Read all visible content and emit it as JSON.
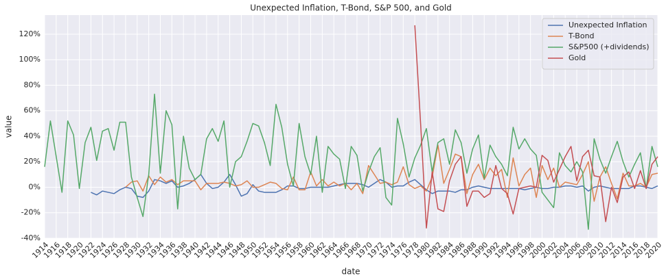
{
  "chart_data": {
    "type": "line",
    "title": "Unexpected Inflation, T-Bond, S&P 500, and Gold",
    "x_label": "date",
    "y_label": "value",
    "x": [
      1914,
      1915,
      1916,
      1917,
      1918,
      1919,
      1920,
      1921,
      1922,
      1923,
      1924,
      1925,
      1926,
      1927,
      1928,
      1929,
      1930,
      1931,
      1932,
      1933,
      1934,
      1935,
      1936,
      1937,
      1938,
      1939,
      1940,
      1941,
      1942,
      1943,
      1944,
      1945,
      1946,
      1947,
      1948,
      1949,
      1950,
      1951,
      1952,
      1953,
      1954,
      1955,
      1956,
      1957,
      1958,
      1959,
      1960,
      1961,
      1962,
      1963,
      1964,
      1965,
      1966,
      1967,
      1968,
      1969,
      1970,
      1971,
      1972,
      1973,
      1974,
      1975,
      1976,
      1977,
      1978,
      1979,
      1980,
      1981,
      1982,
      1983,
      1984,
      1985,
      1986,
      1987,
      1988,
      1989,
      1990,
      1991,
      1992,
      1993,
      1994,
      1995,
      1996,
      1997,
      1998,
      1999,
      2000,
      2001,
      2002,
      2003,
      2004,
      2005,
      2006,
      2007,
      2008,
      2009,
      2010,
      2011,
      2012,
      2013,
      2014,
      2015,
      2016,
      2017,
      2018,
      2019,
      2020
    ],
    "series": [
      {
        "name": "Unexpected Inflation",
        "color": "#4c72b0",
        "values": [
          null,
          null,
          null,
          null,
          null,
          null,
          null,
          null,
          -4,
          -6,
          -3,
          -4,
          -5,
          -2,
          0,
          -1,
          -7,
          -8,
          -3,
          6,
          5,
          3,
          5,
          0,
          1,
          3,
          6,
          10,
          3,
          -1,
          0,
          4,
          10,
          2,
          -7,
          -5,
          2,
          -3,
          -4,
          -4,
          -4,
          -2,
          1,
          1,
          -1,
          -1,
          0,
          0,
          0,
          0,
          1,
          2,
          3,
          3,
          3,
          2,
          0,
          3,
          6,
          4,
          0,
          1,
          1,
          4,
          6,
          2,
          -2,
          -5,
          -3,
          -3,
          -3,
          -4,
          -2,
          -2,
          0,
          1,
          0,
          -1,
          -1,
          -1,
          -1,
          -1,
          -1,
          -2,
          -1,
          0,
          -1,
          -1,
          0,
          0,
          1,
          1,
          0,
          1,
          -3,
          0,
          1,
          0,
          -1,
          -1,
          -1,
          -1,
          1,
          1,
          0,
          -1,
          1
        ]
      },
      {
        "name": "T-Bond",
        "color": "#dd8452",
        "values": [
          null,
          null,
          null,
          null,
          null,
          null,
          null,
          null,
          null,
          null,
          null,
          null,
          null,
          null,
          0,
          4,
          5,
          -3,
          9,
          2,
          8,
          4,
          6,
          2,
          5,
          5,
          5,
          -2,
          3,
          3,
          3,
          4,
          3,
          1,
          2,
          5,
          0,
          0,
          2,
          4,
          3,
          -1,
          -2,
          8,
          -2,
          -2,
          12,
          1,
          6,
          1,
          4,
          1,
          3,
          -2,
          3,
          -5,
          17,
          10,
          3,
          4,
          2,
          4,
          16,
          2,
          -1,
          1,
          -3,
          8,
          33,
          3,
          14,
          26,
          24,
          -5,
          10,
          18,
          6,
          15,
          9,
          14,
          -8,
          23,
          1,
          10,
          15,
          -8,
          17,
          6,
          15,
          0,
          4,
          3,
          2,
          10,
          20,
          -11,
          8,
          16,
          3,
          -9,
          11,
          1,
          1,
          3,
          0,
          10,
          11
        ]
      },
      {
        "name": "S&P500 (+dividends)",
        "color": "#55a868",
        "values": [
          16,
          52,
          24,
          -4,
          52,
          41,
          -1,
          35,
          47,
          21,
          44,
          46,
          29,
          51,
          51,
          8,
          -8,
          -23,
          10,
          73,
          11,
          60,
          49,
          -17,
          40,
          15,
          6,
          10,
          38,
          46,
          36,
          52,
          0,
          20,
          24,
          36,
          50,
          48,
          35,
          17,
          65,
          47,
          18,
          1,
          50,
          24,
          10,
          40,
          -4,
          32,
          26,
          22,
          -1,
          32,
          25,
          -3,
          12,
          24,
          31,
          -8,
          -14,
          54,
          34,
          8,
          23,
          33,
          46,
          12,
          35,
          38,
          18,
          45,
          35,
          11,
          30,
          41,
          7,
          33,
          24,
          18,
          9,
          47,
          30,
          38,
          30,
          25,
          -4,
          -10,
          -16,
          27,
          17,
          12,
          20,
          12,
          -33,
          38,
          22,
          11,
          24,
          36,
          20,
          8,
          18,
          27,
          -1,
          32,
          16
        ]
      },
      {
        "name": "Gold",
        "color": "#c44e52",
        "values": [
          null,
          null,
          null,
          null,
          null,
          null,
          null,
          null,
          null,
          null,
          null,
          null,
          null,
          null,
          null,
          null,
          null,
          null,
          null,
          null,
          null,
          null,
          null,
          null,
          null,
          null,
          null,
          null,
          null,
          null,
          null,
          null,
          null,
          null,
          null,
          null,
          null,
          null,
          null,
          null,
          null,
          null,
          null,
          null,
          null,
          null,
          null,
          null,
          null,
          null,
          null,
          null,
          null,
          null,
          null,
          null,
          null,
          null,
          null,
          null,
          null,
          null,
          null,
          null,
          127,
          50,
          -32,
          12,
          -17,
          -19,
          5,
          18,
          24,
          -15,
          -3,
          -3,
          -8,
          -5,
          17,
          -1,
          -5,
          -21,
          -1,
          0,
          1,
          0,
          25,
          21,
          4,
          14,
          24,
          32,
          5,
          24,
          29,
          9,
          8,
          -27,
          0,
          -12,
          8,
          12,
          -1,
          13,
          -1,
          18,
          24
        ]
      }
    ],
    "xlim": [
      1914,
      2020
    ],
    "xticks": [
      1914,
      1916,
      1918,
      1920,
      1922,
      1924,
      1926,
      1928,
      1930,
      1932,
      1934,
      1936,
      1938,
      1940,
      1942,
      1944,
      1946,
      1948,
      1950,
      1952,
      1954,
      1956,
      1958,
      1960,
      1962,
      1964,
      1966,
      1968,
      1970,
      1972,
      1974,
      1976,
      1978,
      1980,
      1982,
      1984,
      1986,
      1988,
      1990,
      1992,
      1994,
      1996,
      1998,
      2000,
      2002,
      2004,
      2006,
      2008,
      2010,
      2012,
      2014,
      2016,
      2018,
      2020
    ],
    "ylim": [
      -40,
      135
    ],
    "yticks": [
      {
        "value": -40,
        "label": "-40%"
      },
      {
        "value": -20,
        "label": "-20%"
      },
      {
        "value": 0,
        "label": "0%"
      },
      {
        "value": 20,
        "label": "20%"
      },
      {
        "value": 40,
        "label": "40%"
      },
      {
        "value": 60,
        "label": "60%"
      },
      {
        "value": 80,
        "label": "80%"
      },
      {
        "value": 100,
        "label": "100%"
      },
      {
        "value": 120,
        "label": "120%"
      }
    ],
    "grid": true,
    "legend": "upper right"
  }
}
